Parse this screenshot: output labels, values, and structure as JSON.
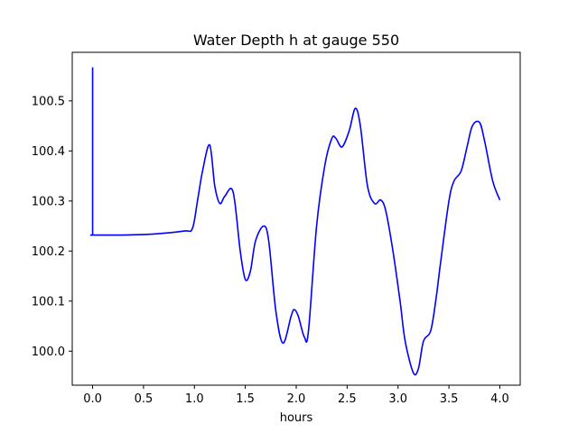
{
  "chart_data": {
    "type": "line",
    "title": "Water Depth h at gauge 550",
    "xlabel": "hours",
    "ylabel": "",
    "xlim": [
      -0.2,
      4.2
    ],
    "ylim": [
      99.932,
      100.597
    ],
    "xticks": [
      0.0,
      0.5,
      1.0,
      1.5,
      2.0,
      2.5,
      3.0,
      3.5,
      4.0
    ],
    "xtick_labels": [
      "0.0",
      "0.5",
      "1.0",
      "1.5",
      "2.0",
      "2.5",
      "3.0",
      "3.5",
      "4.0"
    ],
    "yticks": [
      100.0,
      100.1,
      100.2,
      100.3,
      100.4,
      100.5
    ],
    "ytick_labels": [
      "100.0",
      "100.1",
      "100.2",
      "100.3",
      "100.4",
      "100.5"
    ],
    "grid": false,
    "legend": "none",
    "series": [
      {
        "color": "#0000ff",
        "x": [
          0.0,
          0.0,
          0.005,
          0.3,
          0.6,
          0.9,
          0.98,
          1.03,
          1.08,
          1.15,
          1.2,
          1.25,
          1.3,
          1.38,
          1.45,
          1.5,
          1.55,
          1.6,
          1.68,
          1.73,
          1.8,
          1.87,
          1.95,
          1.98,
          2.02,
          2.08,
          2.12,
          2.2,
          2.28,
          2.35,
          2.39,
          2.45,
          2.52,
          2.58,
          2.63,
          2.7,
          2.77,
          2.83,
          2.88,
          2.95,
          3.02,
          3.07,
          3.15,
          3.2,
          3.25,
          3.32,
          3.37,
          3.42,
          3.5,
          3.55,
          3.62,
          3.68,
          3.73,
          3.8,
          3.85,
          3.93,
          4.0
        ],
        "y": [
          100.567,
          100.232,
          100.232,
          100.232,
          100.234,
          100.24,
          100.245,
          100.3,
          100.36,
          100.412,
          100.33,
          100.295,
          100.31,
          100.318,
          100.2,
          100.143,
          100.16,
          100.22,
          100.25,
          100.22,
          100.08,
          100.016,
          100.07,
          100.083,
          100.07,
          100.028,
          100.04,
          100.25,
          100.37,
          100.425,
          100.425,
          100.408,
          100.44,
          100.485,
          100.45,
          100.33,
          100.295,
          100.302,
          100.28,
          100.2,
          100.1,
          100.02,
          99.957,
          99.965,
          100.02,
          100.04,
          100.1,
          100.18,
          100.3,
          100.34,
          100.36,
          100.41,
          100.45,
          100.457,
          100.42,
          100.34,
          100.302
        ]
      }
    ]
  }
}
